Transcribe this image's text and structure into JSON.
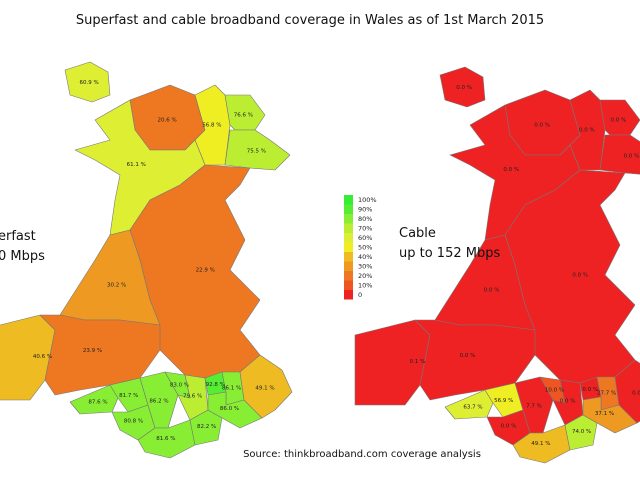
{
  "title": "Superfast and cable broadband coverage in Wales as of 1st March 2015",
  "source": "Source: thinkbroadband.com coverage analysis",
  "legend": [
    {
      "value": 100,
      "label": "100%",
      "color": "#33ee33"
    },
    {
      "value": 90,
      "label": "90%",
      "color": "#55ee33"
    },
    {
      "value": 80,
      "label": "80%",
      "color": "#88ee33"
    },
    {
      "value": 70,
      "label": "70%",
      "color": "#bbee33"
    },
    {
      "value": 60,
      "label": "60%",
      "color": "#ddee33"
    },
    {
      "value": 50,
      "label": "50%",
      "color": "#eeee22"
    },
    {
      "value": 40,
      "label": "40%",
      "color": "#eebb22"
    },
    {
      "value": 30,
      "label": "30%",
      "color": "#ee9922"
    },
    {
      "value": 20,
      "label": "20%",
      "color": "#ee7722"
    },
    {
      "value": 10,
      "label": "10%",
      "color": "#ee5522"
    },
    {
      "value": 0,
      "label": "0",
      "color": "#ee2222"
    }
  ],
  "maps": [
    {
      "label": [
        "erfast",
        "0 Mbps"
      ],
      "values": [
        60.9,
        20.6,
        56.8,
        76.6,
        75.5,
        61.1,
        22.9,
        30.2,
        40.6,
        23.9,
        87.6,
        81.7,
        80.8,
        86.2,
        83.0,
        79.6,
        92.8,
        86.1,
        81.6,
        82.2,
        86.0,
        49.1
      ],
      "value_labels": [
        "60.9 %",
        "20.6 %",
        "56.8 %",
        "76.6 %",
        "75.5 %",
        "61.1 %",
        "22.9 %",
        "30.2 %",
        "40.6 %",
        "23.9 %",
        "87.6 %",
        "81.7 %",
        "80.8 %",
        "86.2 %",
        "83.0 %",
        "79.6 %",
        "92.8 %",
        "86.1 %",
        "81.6 %",
        "82.2 %",
        "86.0 %",
        "49.1 %"
      ]
    },
    {
      "label": [
        "Cable",
        "up to 152 Mbps"
      ],
      "values": [
        0.0,
        0.0,
        0.0,
        0.0,
        0.0,
        0.0,
        0.0,
        0.0,
        0.1,
        0.0,
        63.7,
        56.9,
        0.0,
        7.7,
        10.0,
        0.0,
        0.0,
        27.7,
        49.1,
        74.0,
        37.1,
        0.0
      ],
      "value_labels": [
        "0.0 %",
        "0.0 %",
        "0.0 %",
        "0.0 %",
        "0.0 %",
        "0.0 %",
        "0.0 %",
        "0.0 %",
        "0.1 %",
        "0.0 %",
        "63.7 %",
        "56.9 %",
        "0.0 %",
        "7.7 %",
        "10.0 %",
        "0.0 %",
        "0.0 %",
        "27.7 %",
        "49.1 %",
        "74.0 %",
        "37.1 %",
        "0.0 %"
      ]
    }
  ]
}
